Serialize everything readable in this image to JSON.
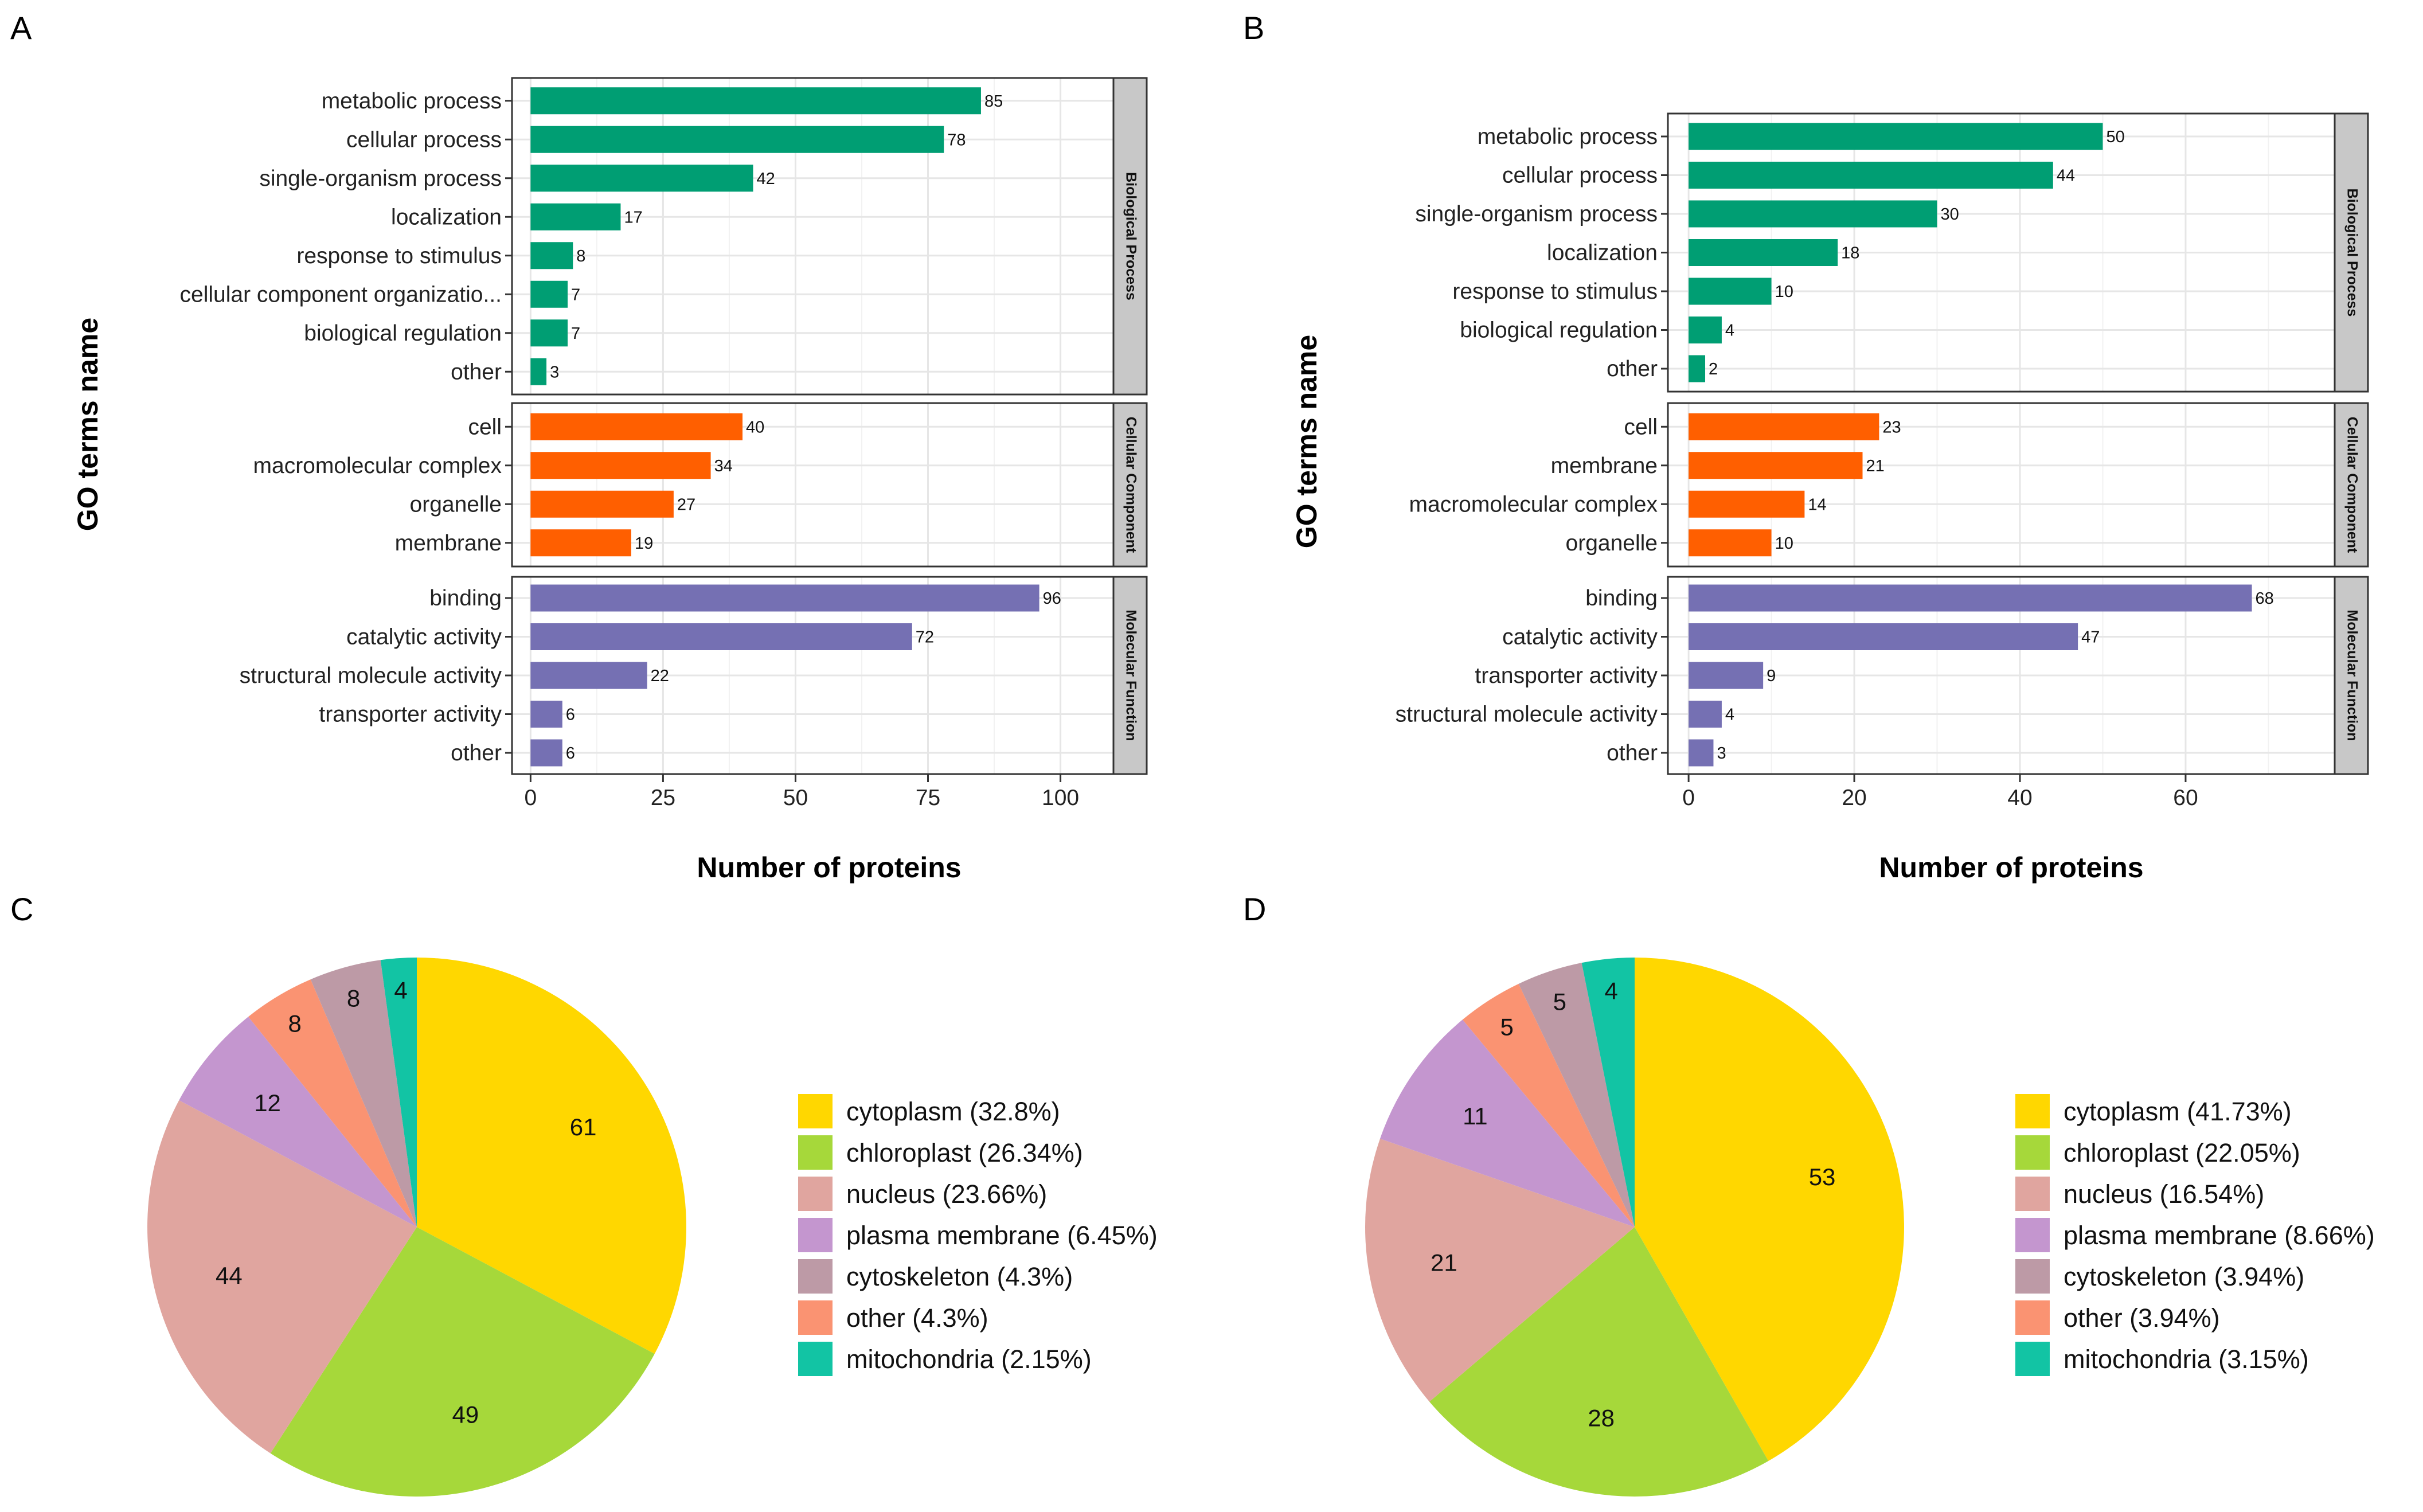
{
  "figure": {
    "panel_letters": [
      "A",
      "B",
      "C",
      "D"
    ]
  },
  "chart_data": [
    {
      "panel": "A",
      "type": "bar",
      "orientation": "horizontal",
      "xlabel": "Number of proteins",
      "ylabel": "GO terms name",
      "xlim": [
        -3.5,
        110
      ],
      "xticks": [
        0,
        25,
        50,
        75,
        100
      ],
      "grid": true,
      "facets": [
        {
          "name": "Biological Process",
          "color": "#009E73",
          "categories": [
            "metabolic process",
            "cellular process",
            "single-organism process",
            "localization",
            "response to stimulus",
            "cellular component organizatio...",
            "biological regulation",
            "other"
          ],
          "values": [
            85,
            78,
            42,
            17,
            8,
            7,
            7,
            3
          ]
        },
        {
          "name": "Cellular Component",
          "color": "#FF5F00",
          "categories": [
            "cell",
            "macromolecular complex",
            "organelle",
            "membrane"
          ],
          "values": [
            40,
            34,
            27,
            19
          ]
        },
        {
          "name": "Molecular Function",
          "color": "#7570B3",
          "categories": [
            "binding",
            "catalytic activity",
            "structural molecule activity",
            "transporter activity",
            "other"
          ],
          "values": [
            96,
            72,
            22,
            6,
            6
          ]
        }
      ]
    },
    {
      "panel": "B",
      "type": "bar",
      "orientation": "horizontal",
      "xlabel": "Number of proteins",
      "ylabel": "GO terms name",
      "xlim": [
        -2.5,
        78
      ],
      "xticks": [
        0,
        20,
        40,
        60
      ],
      "grid": true,
      "facets": [
        {
          "name": "Biological Process",
          "color": "#009E73",
          "categories": [
            "metabolic process",
            "cellular process",
            "single-organism process",
            "localization",
            "response to stimulus",
            "biological regulation",
            "other"
          ],
          "values": [
            50,
            44,
            30,
            18,
            10,
            4,
            2
          ]
        },
        {
          "name": "Cellular Component",
          "color": "#FF5F00",
          "categories": [
            "cell",
            "membrane",
            "macromolecular complex",
            "organelle"
          ],
          "values": [
            23,
            21,
            14,
            10
          ]
        },
        {
          "name": "Molecular Function",
          "color": "#7570B3",
          "categories": [
            "binding",
            "catalytic activity",
            "transporter activity",
            "structural molecule activity",
            "other"
          ],
          "values": [
            68,
            47,
            9,
            4,
            3
          ]
        }
      ]
    },
    {
      "panel": "C",
      "type": "pie",
      "slices": [
        {
          "name": "cytoplasm",
          "value": 61,
          "legend": "cytoplasm (32.8%)",
          "color": "#FFD700"
        },
        {
          "name": "chloroplast",
          "value": 49,
          "legend": "chloroplast (26.34%)",
          "color": "#A6D83A"
        },
        {
          "name": "nucleus",
          "value": 44,
          "legend": "nucleus (23.66%)",
          "color": "#E0A59F"
        },
        {
          "name": "plasma membrane",
          "value": 12,
          "legend": "plasma membrane (6.45%)",
          "color": "#C496CF"
        },
        {
          "name": "other",
          "value": 8,
          "legend": "other (4.3%)",
          "color": "#FA9372"
        },
        {
          "name": "cytoskeleton",
          "value": 8,
          "legend": "cytoskeleton (4.3%)",
          "color": "#BD9AA6"
        },
        {
          "name": "mitochondria",
          "value": 4,
          "legend": "mitochondria (2.15%)",
          "color": "#12C4A4"
        }
      ],
      "legend_order": [
        "cytoplasm (32.8%)",
        "chloroplast (26.34%)",
        "nucleus (23.66%)",
        "plasma membrane (6.45%)",
        "cytoskeleton (4.3%)",
        "other (4.3%)",
        "mitochondria (2.15%)"
      ],
      "legend_colors": [
        "#FFD700",
        "#A6D83A",
        "#E0A59F",
        "#C496CF",
        "#BD9AA6",
        "#FA9372",
        "#12C4A4"
      ]
    },
    {
      "panel": "D",
      "type": "pie",
      "slices": [
        {
          "name": "cytoplasm",
          "value": 53,
          "legend": "cytoplasm (41.73%)",
          "color": "#FFD700"
        },
        {
          "name": "chloroplast",
          "value": 28,
          "legend": "chloroplast (22.05%)",
          "color": "#A6D83A"
        },
        {
          "name": "nucleus",
          "value": 21,
          "legend": "nucleus (16.54%)",
          "color": "#E0A59F"
        },
        {
          "name": "plasma membrane",
          "value": 11,
          "legend": "plasma membrane (8.66%)",
          "color": "#C496CF"
        },
        {
          "name": "other",
          "value": 5,
          "legend": "other (3.94%)",
          "color": "#FA9372"
        },
        {
          "name": "cytoskeleton",
          "value": 5,
          "legend": "cytoskeleton (3.94%)",
          "color": "#BD9AA6"
        },
        {
          "name": "mitochondria",
          "value": 4,
          "legend": "mitochondria (3.15%)",
          "color": "#12C4A4"
        }
      ],
      "legend_order": [
        "cytoplasm (41.73%)",
        "chloroplast (22.05%)",
        "nucleus (16.54%)",
        "plasma membrane (8.66%)",
        "cytoskeleton (3.94%)",
        "other (3.94%)",
        "mitochondria (3.15%)"
      ],
      "legend_colors": [
        "#FFD700",
        "#A6D83A",
        "#E0A59F",
        "#C496CF",
        "#BD9AA6",
        "#FA9372",
        "#12C4A4"
      ]
    }
  ]
}
